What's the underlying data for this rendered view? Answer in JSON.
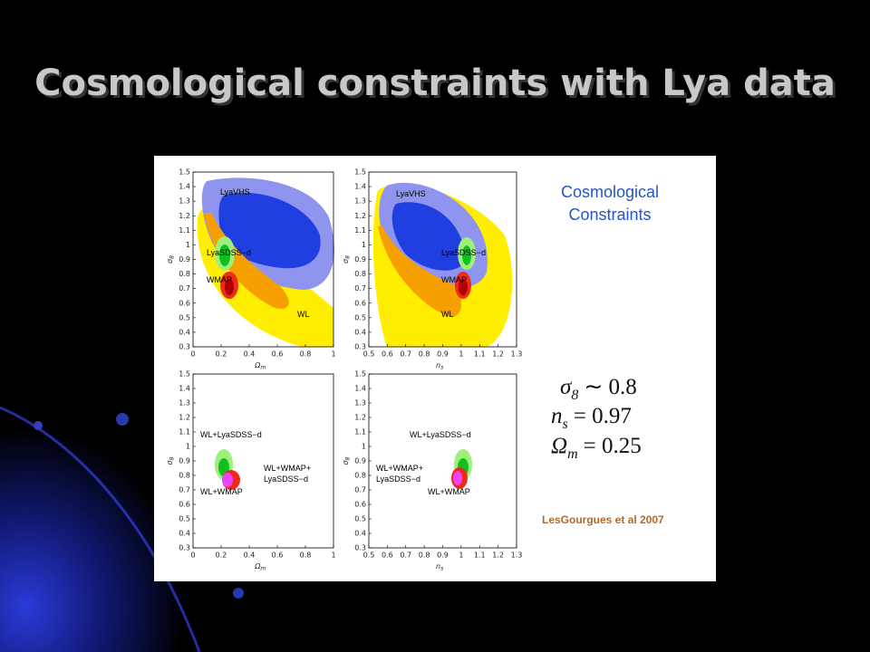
{
  "title": "Cosmological constraints with Lya data",
  "figure": {
    "heading": [
      "Cosmological",
      "Constraints"
    ],
    "panels": [
      {
        "ylabel": {
          "symbol": "σ",
          "subscript": "8"
        },
        "xlabel": {
          "symbol": "Ω",
          "subscript": "m"
        },
        "yticks": [
          "0.3",
          "0.4",
          "0.5",
          "0.6",
          "0.7",
          "0.8",
          "0.9",
          "1",
          "1.1",
          "1.2",
          "1.3",
          "1.4",
          "1.5"
        ],
        "xticks": [
          "0",
          "0.2",
          "0.4",
          "0.6",
          "0.8",
          "1"
        ],
        "annotations": [
          "LyaVHS",
          "LyaSDSS−d",
          "WMAP",
          "WL"
        ]
      },
      {
        "ylabel": {
          "symbol": "σ",
          "subscript": "8"
        },
        "xlabel": {
          "symbol": "n",
          "subscript": "s"
        },
        "yticks": [
          "0.3",
          "0.4",
          "0.5",
          "0.6",
          "0.7",
          "0.8",
          "0.9",
          "1",
          "1.1",
          "1.2",
          "1.3",
          "1.4",
          "1.5"
        ],
        "xticks": [
          "0.5",
          "0.6",
          "0.7",
          "0.8",
          "0.9",
          "1",
          "1.1",
          "1.2",
          "1.3"
        ],
        "annotations": [
          "LyaVHS",
          "LyaSDSS−d",
          "WMAP",
          "WL"
        ]
      },
      {
        "ylabel": {
          "symbol": "σ",
          "subscript": "8"
        },
        "xlabel": {
          "symbol": "Ω",
          "subscript": "m"
        },
        "yticks": [
          "0.3",
          "0.4",
          "0.5",
          "0.6",
          "0.7",
          "0.8",
          "0.9",
          "1",
          "1.1",
          "1.2",
          "1.3",
          "1.4",
          "1.5"
        ],
        "xticks": [
          "0",
          "0.2",
          "0.4",
          "0.6",
          "0.8",
          "1"
        ],
        "annotations": [
          "WL+LyaSDSS−d",
          "WL+WMAP+",
          "LyaSDSS−d",
          "WL+WMAP"
        ]
      },
      {
        "ylabel": {
          "symbol": "σ",
          "subscript": "8"
        },
        "xlabel": {
          "symbol": "n",
          "subscript": "s"
        },
        "yticks": [
          "0.3",
          "0.4",
          "0.5",
          "0.6",
          "0.7",
          "0.8",
          "0.9",
          "1",
          "1.1",
          "1.2",
          "1.3",
          "1.4",
          "1.5"
        ],
        "xticks": [
          "0.5",
          "0.6",
          "0.7",
          "0.8",
          "0.9",
          "1",
          "1.1",
          "1.2",
          "1.3"
        ],
        "annotations": [
          "WL+LyaSDSS−d",
          "WL+WMAP+",
          "LyaSDSS−d",
          "WL+WMAP"
        ]
      }
    ],
    "equations": [
      {
        "symbol": "σ",
        "subscript": "8",
        "rest": "∼ 0.8"
      },
      {
        "symbol": "n",
        "subscript": "s",
        "rest": "= 0.97"
      },
      {
        "symbol": "Ω",
        "subscript": "m",
        "rest": "= 0.25"
      }
    ],
    "citation": "LesGourgues et al 2007"
  }
}
